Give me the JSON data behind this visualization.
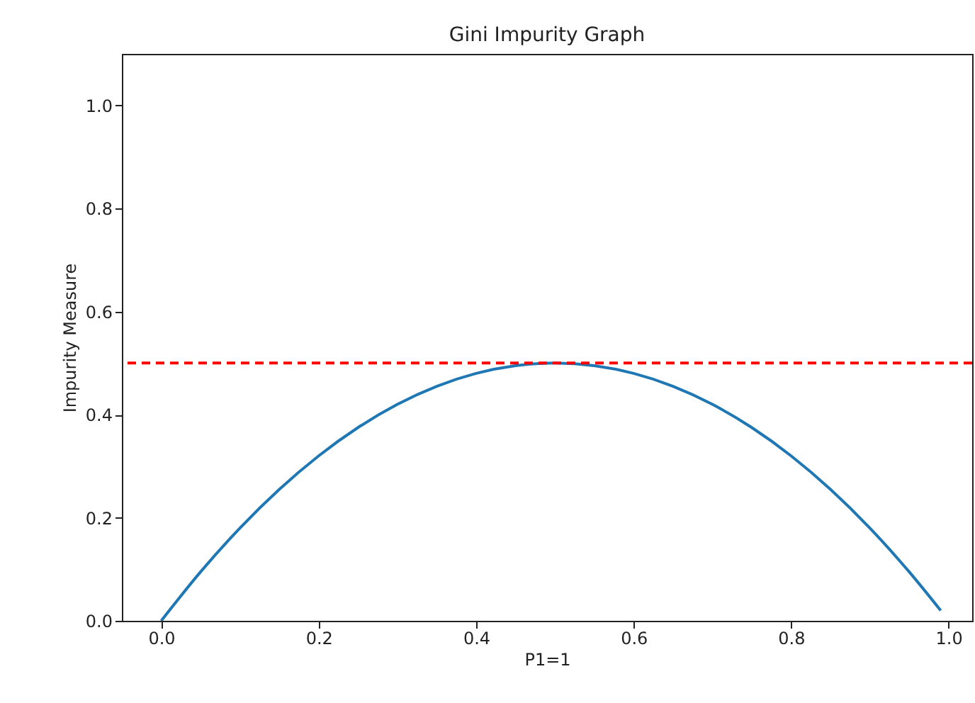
{
  "chart_data": {
    "type": "line",
    "title": "Gini Impurity Graph",
    "xlabel": "P1=1",
    "ylabel": "Impurity Measure",
    "x": [
      0,
      0.05,
      0.1,
      0.15,
      0.2,
      0.25,
      0.3,
      0.35,
      0.4,
      0.45,
      0.5,
      0.55,
      0.6,
      0.65,
      0.7,
      0.75,
      0.8,
      0.85,
      0.9,
      0.95,
      0.99
    ],
    "series": [
      {
        "color": "#1f77b4",
        "values": [
          0,
          0.095,
          0.18,
          0.255,
          0.32,
          0.375,
          0.42,
          0.455,
          0.48,
          0.495,
          0.5,
          0.495,
          0.48,
          0.455,
          0.42,
          0.375,
          0.32,
          0.255,
          0.18,
          0.095,
          0.02
        ]
      }
    ],
    "xlim": [
      -0.05,
      1.03
    ],
    "ylim": [
      0,
      1.1
    ],
    "xticks": [
      {
        "value": 0,
        "label": "0.0"
      },
      {
        "value": 0.2,
        "label": "0.2"
      },
      {
        "value": 0.4,
        "label": "0.4"
      },
      {
        "value": 0.6,
        "label": "0.6"
      },
      {
        "value": 0.8,
        "label": "0.8"
      },
      {
        "value": 1,
        "label": "1.0"
      }
    ],
    "yticks": [
      {
        "value": 0,
        "label": "0.0"
      },
      {
        "value": 0.2,
        "label": "0.2"
      },
      {
        "value": 0.4,
        "label": "0.4"
      },
      {
        "value": 0.6,
        "label": "0.6"
      },
      {
        "value": 0.8,
        "label": "0.8"
      },
      {
        "value": 1,
        "label": "1.0"
      }
    ],
    "ref_lines": [
      {
        "axis": "y",
        "value": 0.5,
        "color": "#ff0000",
        "line_style": "dashed"
      }
    ],
    "grid": false
  }
}
